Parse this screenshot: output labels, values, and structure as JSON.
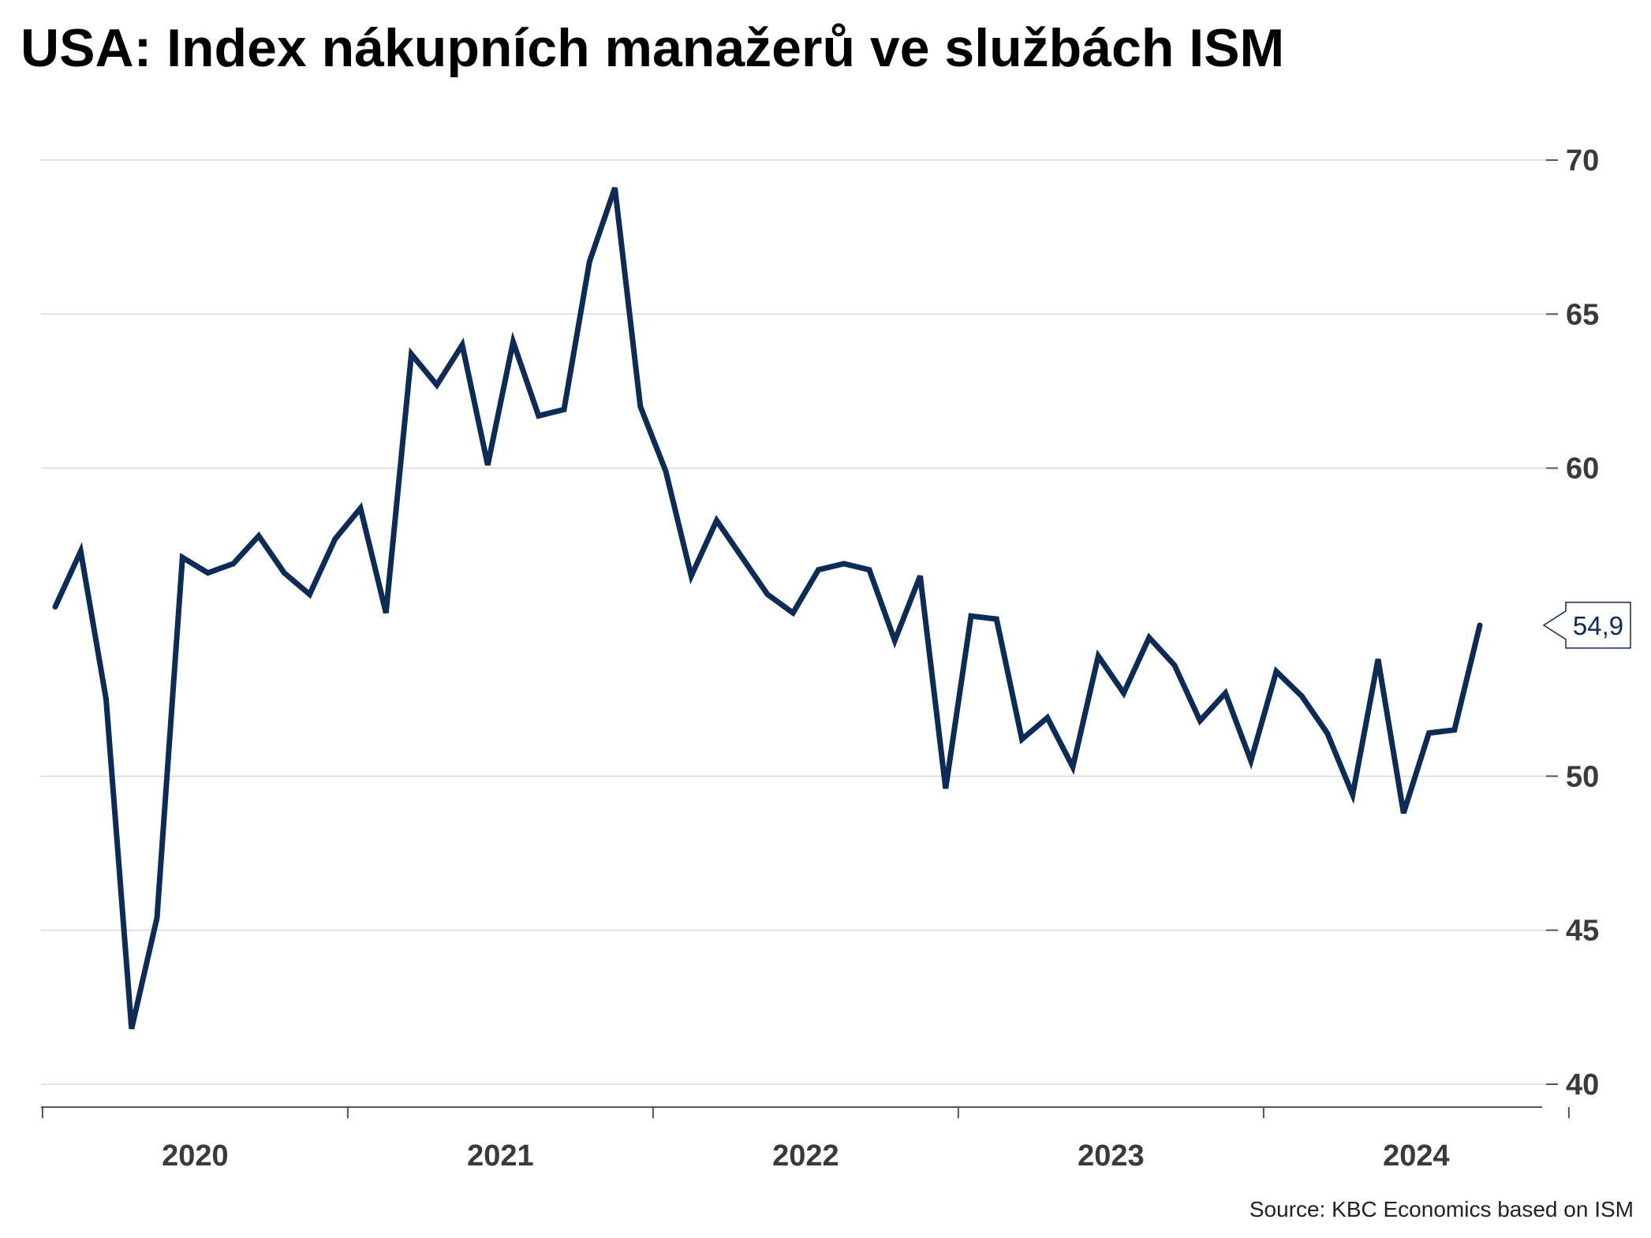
{
  "title": "USA: Index nákupních manažerů ve službách ISM",
  "source": "Source: KBC Economics based on ISM",
  "colors": {
    "line": "#0c2b57",
    "grid": "#d9d9d9",
    "axis": "#555555",
    "tick_text": "#3a3a3a"
  },
  "chart_data": {
    "type": "line",
    "title": "USA: Index nákupních manažerů ve službách ISM",
    "xlabel": "",
    "ylabel": "",
    "ylim": [
      40,
      70
    ],
    "y_ticks": [
      40,
      45,
      50,
      60,
      65,
      70
    ],
    "y_axis_position": "right",
    "grid": true,
    "legend": "none",
    "x_year_labels": [
      "2020",
      "2021",
      "2022",
      "2023",
      "2024"
    ],
    "last_value_label": "54,9",
    "series": [
      {
        "x": [
          "2020-01",
          "2020-02",
          "2020-03",
          "2020-04",
          "2020-05",
          "2020-06",
          "2020-07",
          "2020-08",
          "2020-09",
          "2020-10",
          "2020-11",
          "2020-12",
          "2021-01",
          "2021-02",
          "2021-03",
          "2021-04",
          "2021-05",
          "2021-06",
          "2021-07",
          "2021-08",
          "2021-09",
          "2021-10",
          "2021-11",
          "2021-12",
          "2022-01",
          "2022-02",
          "2022-03",
          "2022-04",
          "2022-05",
          "2022-06",
          "2022-07",
          "2022-08",
          "2022-09",
          "2022-10",
          "2022-11",
          "2022-12",
          "2023-01",
          "2023-02",
          "2023-03",
          "2023-04",
          "2023-05",
          "2023-06",
          "2023-07",
          "2023-08",
          "2023-09",
          "2023-10",
          "2023-11",
          "2023-12",
          "2024-01",
          "2024-02",
          "2024-03",
          "2024-04",
          "2024-05",
          "2024-06",
          "2024-07",
          "2024-08",
          "2024-09"
        ],
        "values": [
          55.5,
          57.3,
          52.5,
          41.8,
          45.4,
          57.1,
          56.6,
          56.9,
          57.8,
          56.6,
          55.9,
          57.7,
          58.7,
          55.3,
          63.7,
          62.7,
          64.0,
          60.1,
          64.1,
          61.7,
          61.9,
          66.7,
          69.1,
          62.0,
          59.9,
          56.5,
          58.3,
          57.1,
          55.9,
          55.3,
          56.7,
          56.9,
          56.7,
          54.4,
          56.5,
          49.6,
          55.2,
          55.1,
          51.2,
          51.9,
          50.3,
          53.9,
          52.7,
          54.5,
          53.6,
          51.8,
          52.7,
          50.5,
          53.4,
          52.6,
          51.4,
          49.4,
          53.8,
          48.8,
          51.4,
          51.5,
          54.9
        ]
      }
    ]
  }
}
